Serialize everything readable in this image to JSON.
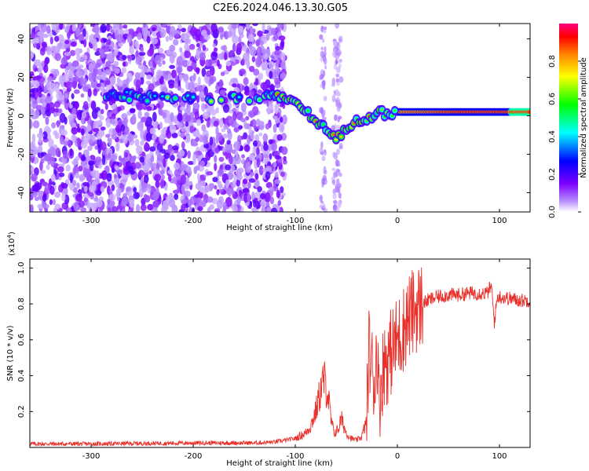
{
  "title": "C2E6.2024.046.13.30.G05",
  "chart_data": [
    {
      "type": "heatmap",
      "xlabel": "Height of straight line (km)",
      "ylabel": "Frequency (Hz)",
      "xlim": [
        -360,
        130
      ],
      "ylim": [
        -50,
        48
      ],
      "xticks": [
        -300,
        -200,
        -100,
        0,
        100
      ],
      "yticks": [
        -40,
        -20,
        0,
        20,
        40
      ],
      "colorbar": {
        "label": "Normalized spectral amplitude",
        "range": [
          0,
          1
        ],
        "ticks": [
          "0.0",
          "0.2",
          "0.4",
          "0.6",
          "0.8"
        ],
        "colormap": [
          "#ffffff",
          "#7d00ff",
          "#0000ff",
          "#00ffff",
          "#00ff00",
          "#ffff00",
          "#ff8000",
          "#ff0000",
          "#ff007f"
        ]
      },
      "features": {
        "noise_region_x": [
          -360,
          -120
        ],
        "gap_region_x": [
          -110,
          -75
        ],
        "secondary_noise_x": [
          -75,
          -55
        ],
        "ridge": [
          {
            "x": -280,
            "y": 11
          },
          {
            "x": -255,
            "y": 10
          },
          {
            "x": -230,
            "y": 9
          },
          {
            "x": -200,
            "y": 10
          },
          {
            "x": -170,
            "y": 9
          },
          {
            "x": -140,
            "y": 9
          },
          {
            "x": -120,
            "y": 10
          },
          {
            "x": -100,
            "y": 8
          },
          {
            "x": -90,
            "y": 2
          },
          {
            "x": -80,
            "y": -2
          },
          {
            "x": -70,
            "y": -8
          },
          {
            "x": -60,
            "y": -12
          },
          {
            "x": -50,
            "y": -6
          },
          {
            "x": -35,
            "y": -2
          },
          {
            "x": -20,
            "y": 1
          },
          {
            "x": 0,
            "y": 2
          },
          {
            "x": 50,
            "y": 2
          },
          {
            "x": 100,
            "y": 2
          },
          {
            "x": 130,
            "y": 2
          }
        ]
      }
    },
    {
      "type": "line",
      "xlabel": "Height of straight line (km)",
      "ylabel": "SNR (10 * v/v)",
      "y_multiplier": "(x10^4)",
      "xlim": [
        -360,
        130
      ],
      "ylim": [
        0,
        1.05
      ],
      "xticks": [
        -300,
        -200,
        -100,
        0,
        100
      ],
      "yticks": [
        0.2,
        0.4,
        0.6,
        0.8,
        1.0
      ],
      "color": "#e8312b",
      "x": [
        -360,
        -300,
        -200,
        -140,
        -120,
        -100,
        -90,
        -85,
        -80,
        -75,
        -72,
        -68,
        -65,
        -62,
        -58,
        -55,
        -50,
        -45,
        -40,
        -35,
        -30,
        -28,
        -25,
        -22,
        -20,
        -18,
        -15,
        -12,
        -10,
        -5,
        0,
        5,
        10,
        15,
        20,
        25,
        30,
        40,
        50,
        60,
        70,
        80,
        88,
        92,
        95,
        98,
        100,
        110,
        120,
        130
      ],
      "y": [
        0.02,
        0.02,
        0.025,
        0.025,
        0.03,
        0.05,
        0.08,
        0.12,
        0.2,
        0.32,
        0.38,
        0.3,
        0.15,
        0.08,
        0.1,
        0.16,
        0.08,
        0.05,
        0.04,
        0.06,
        0.15,
        0.55,
        0.45,
        0.35,
        0.6,
        0.25,
        0.4,
        0.5,
        0.48,
        0.55,
        0.6,
        0.65,
        0.72,
        0.75,
        0.78,
        0.8,
        0.82,
        0.84,
        0.85,
        0.85,
        0.86,
        0.86,
        0.86,
        0.9,
        0.7,
        0.84,
        0.84,
        0.83,
        0.82,
        0.82
      ]
    }
  ]
}
